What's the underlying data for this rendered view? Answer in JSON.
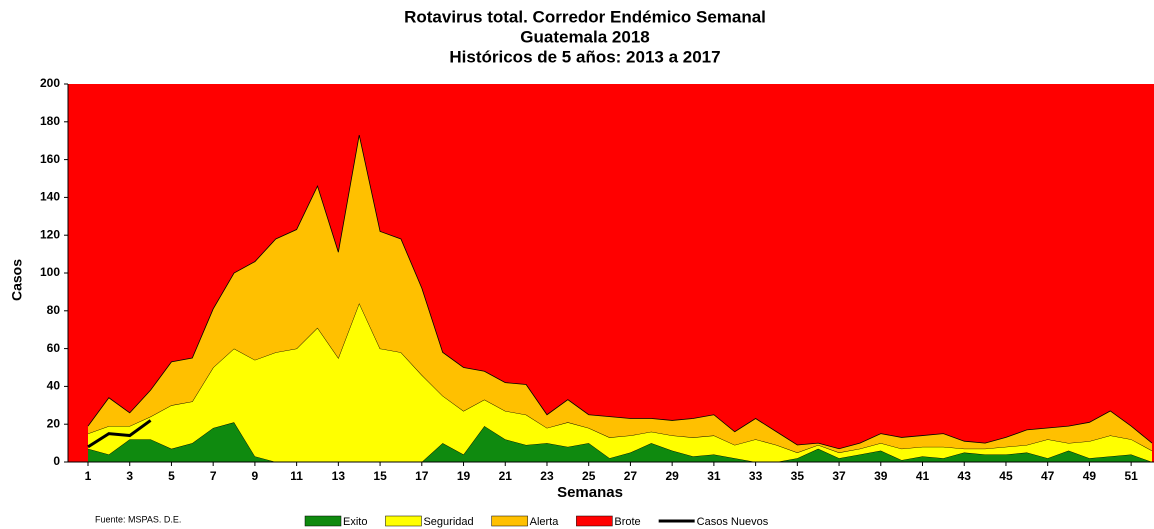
{
  "chart_data": {
    "type": "area",
    "title": "Rotavirus total. Corredor Endémico Semanal",
    "subtitle": [
      "Guatemala 2018",
      "Históricos de 5 años: 2013 a 2017"
    ],
    "x_label": "Semanas",
    "y_label": "Casos",
    "source": "Fuente: MSPAS. D.E.",
    "x": [
      1,
      2,
      3,
      4,
      5,
      6,
      7,
      8,
      9,
      10,
      11,
      12,
      13,
      14,
      15,
      16,
      17,
      18,
      19,
      20,
      21,
      22,
      23,
      24,
      25,
      26,
      27,
      28,
      29,
      30,
      31,
      32,
      33,
      34,
      35,
      36,
      37,
      38,
      39,
      40,
      41,
      42,
      43,
      44,
      45,
      46,
      47,
      48,
      49,
      50,
      51,
      52
    ],
    "xlim": [
      1,
      52
    ],
    "xticks": [
      1,
      3,
      5,
      7,
      9,
      11,
      13,
      15,
      17,
      19,
      21,
      23,
      25,
      27,
      29,
      31,
      33,
      35,
      37,
      39,
      41,
      43,
      45,
      47,
      49,
      51
    ],
    "ylim": [
      0,
      200
    ],
    "yticks": [
      0,
      20,
      40,
      60,
      80,
      100,
      120,
      140,
      160,
      180,
      200
    ],
    "series": [
      {
        "name": "Exito",
        "color": "#0f8a0f",
        "values": [
          7,
          4,
          12,
          12,
          7,
          10,
          18,
          21,
          3,
          0,
          0,
          0,
          0,
          0,
          0,
          0,
          0,
          10,
          4,
          19,
          12,
          9,
          10,
          8,
          10,
          2,
          5,
          10,
          6,
          3,
          4,
          2,
          0,
          0,
          2,
          7,
          2,
          4,
          6,
          1,
          3,
          2,
          5,
          4,
          4,
          5,
          2,
          6,
          2,
          3,
          4,
          0
        ]
      },
      {
        "name": "Seguridad",
        "color": "#ffff00",
        "values": [
          15,
          19,
          19,
          24,
          30,
          32,
          50,
          60,
          54,
          58,
          60,
          71,
          55,
          84,
          60,
          58,
          46,
          35,
          27,
          33,
          27,
          25,
          18,
          21,
          18,
          13,
          14,
          16,
          14,
          13,
          14,
          9,
          12,
          9,
          5,
          9,
          5,
          7,
          10,
          7,
          8,
          8,
          7,
          7,
          8,
          9,
          12,
          10,
          11,
          14,
          12,
          6
        ]
      },
      {
        "name": "Alerta",
        "color": "#ffc000",
        "values": [
          19,
          34,
          26,
          38,
          53,
          55,
          81,
          100,
          106,
          118,
          123,
          146,
          111,
          173,
          122,
          118,
          92,
          58,
          50,
          48,
          42,
          41,
          25,
          33,
          25,
          24,
          23,
          23,
          22,
          23,
          25,
          16,
          23,
          16,
          9,
          10,
          7,
          10,
          15,
          13,
          14,
          15,
          11,
          10,
          13,
          17,
          18,
          19,
          21,
          27,
          19,
          10
        ]
      },
      {
        "name": "Brote",
        "color": "#ff0000"
      },
      {
        "name": "Casos Nuevos",
        "color": "#000000",
        "line": true,
        "values": [
          8,
          15,
          14,
          22,
          null,
          null,
          null,
          null,
          null,
          null,
          null,
          null,
          null,
          null,
          null,
          null,
          null,
          null,
          null,
          null,
          null,
          null,
          null,
          null,
          null,
          null,
          null,
          null,
          null,
          null,
          null,
          null,
          null,
          null,
          null,
          null,
          null,
          null,
          null,
          null,
          null,
          null,
          null,
          null,
          null,
          null,
          null,
          null,
          null,
          null,
          null,
          null
        ]
      }
    ]
  }
}
